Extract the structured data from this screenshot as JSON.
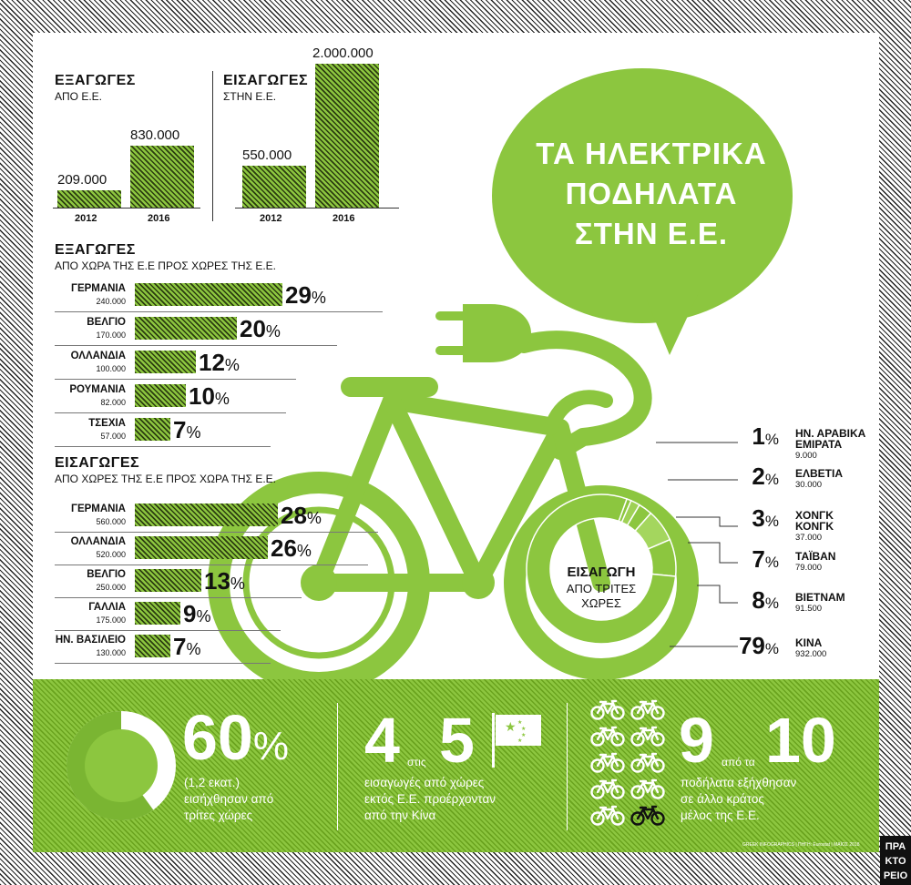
{
  "title": {
    "line1": "ΤΑ ΗΛΕΚΤΡΙΚΑ",
    "line2": "ΠΟΔΗΛΑΤΑ",
    "line3": "ΣΤΗΝ Ε.Ε."
  },
  "exports_eu": {
    "heading": "ΕΞΑΓΩΓΕΣ",
    "sub": "ΑΠΟ Ε.Ε.",
    "bars": [
      {
        "year": "2012",
        "value": 209000,
        "label": "209.000"
      },
      {
        "year": "2016",
        "value": 830000,
        "label": "830.000"
      }
    ]
  },
  "imports_eu": {
    "heading": "ΕΙΣΑΓΩΓΕΣ",
    "sub": "ΣΤΗΝ Ε.Ε.",
    "bars": [
      {
        "year": "2012",
        "value": 550000,
        "label": "550.000"
      },
      {
        "year": "2016",
        "value": 2000000,
        "label": "2.000.000"
      }
    ]
  },
  "exports_countries": {
    "heading": "ΕΞΑΓΩΓΕΣ",
    "sub": "ΑΠΟ ΧΩΡΑ ΤΗΣ Ε.Ε ΠΡΟΣ ΧΩΡΕΣ ΤΗΣ Ε.Ε.",
    "rows": [
      {
        "name": "ΓΕΡΜΑΝΙΑ",
        "value": "240.000",
        "pct": 29
      },
      {
        "name": "ΒΕΛΓΙΟ",
        "value": "170.000",
        "pct": 20
      },
      {
        "name": "ΟΛΛΑΝΔΙΑ",
        "value": "100.000",
        "pct": 12
      },
      {
        "name": "ΡΟΥΜΑΝΙΑ",
        "value": "82.000",
        "pct": 10
      },
      {
        "name": "ΤΣΕΧΙΑ",
        "value": "57.000",
        "pct": 7
      }
    ]
  },
  "imports_countries": {
    "heading": "ΕΙΣΑΓΩΓΕΣ",
    "sub": "ΑΠΟ ΧΩΡΕΣ ΤΗΣ Ε.Ε ΠΡΟΣ ΧΩΡΑ ΤΗΣ Ε.Ε.",
    "rows": [
      {
        "name": "ΓΕΡΜΑΝΙΑ",
        "value": "560.000",
        "pct": 28
      },
      {
        "name": "ΟΛΛΑΝΔΙΑ",
        "value": "520.000",
        "pct": 26
      },
      {
        "name": "ΒΕΛΓΙΟ",
        "value": "250.000",
        "pct": 13
      },
      {
        "name": "ΓΑΛΛΙΑ",
        "value": "175.000",
        "pct": 9
      },
      {
        "name": "ΗΝ. ΒΑΣΙΛΕΙΟ",
        "value": "130.000",
        "pct": 7
      }
    ]
  },
  "third_countries": {
    "center_line1": "ΕΙΣΑΓΩΓΗ",
    "center_line2": "ΑΠΟ ΤΡΙΤΕΣ",
    "center_line3": "ΧΩΡΕΣ",
    "rows": [
      {
        "name1": "ΗΝ. ΑΡΑΒΙΚΑ",
        "name2": "ΕΜΙΡΑΤΑ",
        "value": "9.000",
        "pct": 1
      },
      {
        "name1": "ΕΛΒΕΤΙΑ",
        "name2": "",
        "value": "30.000",
        "pct": 2
      },
      {
        "name1": "ΧΟΝΓΚ",
        "name2": "ΚΟΝΓΚ",
        "value": "37.000",
        "pct": 3
      },
      {
        "name1": "ΤΑΪΒΑΝ",
        "name2": "",
        "value": "79.000",
        "pct": 7
      },
      {
        "name1": "ΒΙΕΤΝΑΜ",
        "name2": "",
        "value": "91.500",
        "pct": 8
      },
      {
        "name1": "ΚΙΝΑ",
        "name2": "",
        "value": "932.000",
        "pct": 79
      }
    ]
  },
  "footer": {
    "stat1": {
      "big": "60",
      "pct_sign": "%",
      "line1": "(1,2 εκατ.)",
      "line2": "εισήχθησαν από",
      "line3": "τρίτες χώρες",
      "share": 0.6
    },
    "stat2": {
      "big1": "4",
      "small": "στις",
      "big2": "5",
      "line1": "εισαγωγές από χώρες",
      "line2": "εκτός Ε.Ε. προέρχονταν",
      "line3": "από την Κίνα"
    },
    "stat3": {
      "big1": "9",
      "small": "από τα",
      "big2": "10",
      "line1": "ποδήλατα εξήχθησαν",
      "line2": "σε άλλο κράτος",
      "line3": "μέλος της Ε.Ε.",
      "highlighted": 9,
      "total": 10
    },
    "credits": "GREEK INFOGRAPHICS  |  ΠΗΓΗ: Eurostat  |  ΜΑΪΟΣ 2018",
    "logo_line1": "ΠΡΑ",
    "logo_line2": "ΚΤΟ",
    "logo_line3": "ΡΕΙΟ"
  },
  "colors": {
    "green": "#8cc63f",
    "dark": "#111111"
  },
  "icons": [
    "plug-icon",
    "bicycle-icon",
    "china-flag-icon"
  ]
}
